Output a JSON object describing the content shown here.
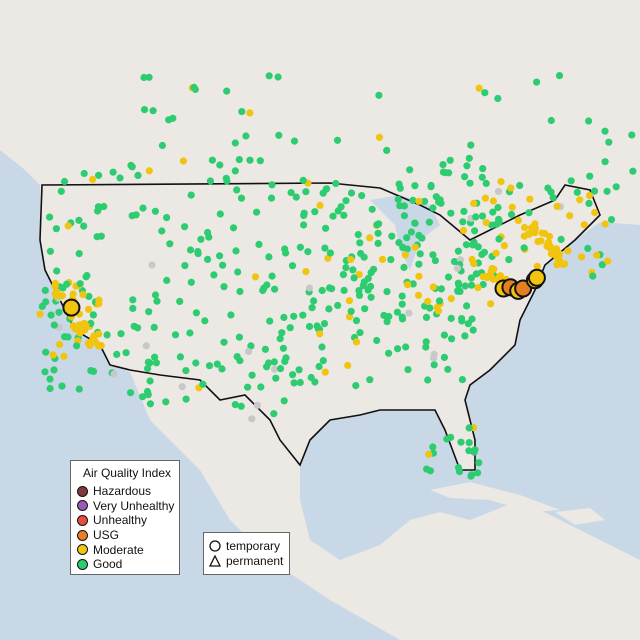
{
  "legend": {
    "title": "Air Quality Index",
    "categories": [
      {
        "label": "Hazardous",
        "color": "#7e3b3b"
      },
      {
        "label": "Very Unhealthy",
        "color": "#9b59b6"
      },
      {
        "label": "Unhealthy",
        "color": "#e74c3c"
      },
      {
        "label": "USG",
        "color": "#e67e22"
      },
      {
        "label": "Moderate",
        "color": "#f1c40f"
      },
      {
        "label": "Good",
        "color": "#2ecc71"
      }
    ],
    "types": [
      {
        "label": "temporary",
        "shape": "circle"
      },
      {
        "label": "permanent",
        "shape": "triangle"
      }
    ]
  },
  "colors": {
    "ocean": "#c8d8e6",
    "land": "#ece8e3",
    "no_data": "#c8c8c8",
    "border": "#111111"
  },
  "highlighted_monitors": [
    {
      "lat": 38.7,
      "lon": -121.8,
      "category": "Moderate"
    },
    {
      "lat": 40.3,
      "lon": -77.7,
      "category": "Moderate"
    },
    {
      "lat": 40.4,
      "lon": -77.0,
      "category": "USG"
    },
    {
      "lat": 40.1,
      "lon": -76.2,
      "category": "Moderate"
    },
    {
      "lat": 40.3,
      "lon": -75.7,
      "category": "USG"
    },
    {
      "lat": 41.0,
      "lon": -74.5,
      "category": "Moderate"
    },
    {
      "lat": 41.2,
      "lon": -74.3,
      "category": "Moderate"
    }
  ]
}
